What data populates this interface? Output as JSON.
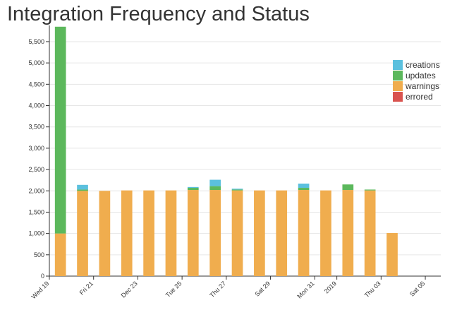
{
  "chart_data": {
    "type": "bar",
    "stacked": true,
    "title": "Integration Frequency and Status",
    "xlabel": "",
    "ylabel": "",
    "ylim": [
      0,
      5880
    ],
    "grid": true,
    "legend_position": "top-right",
    "y_ticks": [
      0,
      500,
      1000,
      1500,
      2000,
      2500,
      3000,
      3500,
      4000,
      4500,
      5000,
      5500
    ],
    "y_tick_labels": [
      "0",
      "500",
      "1,000",
      "1,500",
      "2,000",
      "2,500",
      "3,000",
      "3,500",
      "4,000",
      "4,500",
      "5,000",
      "5,500"
    ],
    "x_tick_labels": [
      {
        "label": "Wed 19",
        "day": 0
      },
      {
        "label": "Fri 21",
        "day": 2
      },
      {
        "label": "Dec 23",
        "day": 4
      },
      {
        "label": "Tue 25",
        "day": 6
      },
      {
        "label": "Thu 27",
        "day": 8
      },
      {
        "label": "Sat 29",
        "day": 10
      },
      {
        "label": "Mon 31",
        "day": 12
      },
      {
        "label": "2019",
        "day": 13
      },
      {
        "label": "Thu 03",
        "day": 15
      },
      {
        "label": "Sat 05",
        "day": 17
      }
    ],
    "x_domain_days": [
      0,
      17.7
    ],
    "bar_width_days": 0.5,
    "days": [
      0.5,
      1.5,
      2.5,
      3.5,
      4.5,
      5.5,
      6.5,
      7.5,
      8.5,
      9.5,
      10.5,
      11.5,
      12.5,
      13.5,
      14.5,
      15.5
    ],
    "series": [
      {
        "name": "warnings",
        "color": "#f0ad4e",
        "values": [
          1000,
          2000,
          2000,
          2010,
          2010,
          2010,
          2020,
          2020,
          2010,
          2010,
          2010,
          2020,
          2010,
          2020,
          2010,
          1010
        ]
      },
      {
        "name": "errored",
        "color": "#d9534f",
        "values": [
          0,
          0,
          0,
          0,
          0,
          0,
          0,
          0,
          0,
          0,
          0,
          0,
          0,
          0,
          0,
          0
        ]
      },
      {
        "name": "updates",
        "color": "#5cb85c",
        "values": [
          4850,
          30,
          0,
          0,
          0,
          0,
          50,
          90,
          20,
          0,
          0,
          50,
          0,
          130,
          20,
          0
        ]
      },
      {
        "name": "creations",
        "color": "#5bc0de",
        "values": [
          0,
          110,
          0,
          0,
          0,
          0,
          20,
          150,
          20,
          0,
          0,
          100,
          0,
          0,
          0,
          0
        ]
      }
    ],
    "legend": [
      {
        "name": "creations",
        "color": "#5bc0de"
      },
      {
        "name": "updates",
        "color": "#5cb85c"
      },
      {
        "name": "warnings",
        "color": "#f0ad4e"
      },
      {
        "name": "errored",
        "color": "#d9534f"
      }
    ]
  }
}
